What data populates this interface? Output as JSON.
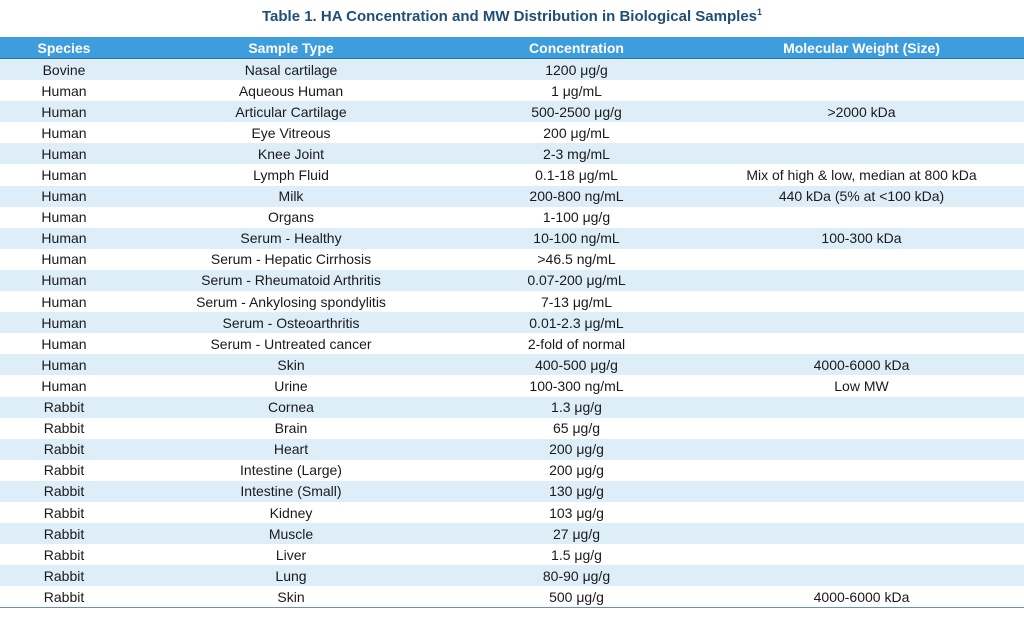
{
  "title": {
    "text": "Table 1. HA Concentration and MW Distribution in Biological Samples",
    "superscript": "1"
  },
  "table": {
    "headers": [
      "Species",
      "Sample Type",
      "Concentration",
      "Molecular Weight (Size)"
    ],
    "rows": [
      [
        "Bovine",
        "Nasal cartilage",
        "1200 μg/g",
        ""
      ],
      [
        "Human",
        "Aqueous Human",
        "1 μg/mL",
        ""
      ],
      [
        "Human",
        "Articular Cartilage",
        "500-2500 μg/g",
        ">2000 kDa"
      ],
      [
        "Human",
        "Eye Vitreous",
        "200 μg/mL",
        ""
      ],
      [
        "Human",
        "Knee Joint",
        "2-3 mg/mL",
        ""
      ],
      [
        "Human",
        "Lymph Fluid",
        "0.1-18 μg/mL",
        "Mix of high & low, median at 800 kDa"
      ],
      [
        "Human",
        "Milk",
        "200-800 ng/mL",
        "440 kDa (5% at <100 kDa)"
      ],
      [
        "Human",
        "Organs",
        "1-100 μg/g",
        ""
      ],
      [
        "Human",
        "Serum - Healthy",
        "10-100 ng/mL",
        "100-300 kDa"
      ],
      [
        "Human",
        "Serum - Hepatic Cirrhosis",
        ">46.5 ng/mL",
        ""
      ],
      [
        "Human",
        "Serum - Rheumatoid Arthritis",
        "0.07-200 μg/mL",
        ""
      ],
      [
        "Human",
        "Serum - Ankylosing spondylitis",
        "7-13 μg/mL",
        ""
      ],
      [
        "Human",
        "Serum - Osteoarthritis",
        "0.01-2.3 μg/mL",
        ""
      ],
      [
        "Human",
        "Serum - Untreated cancer",
        "2-fold of normal",
        ""
      ],
      [
        "Human",
        "Skin",
        "400-500 μg/g",
        "4000-6000 kDa"
      ],
      [
        "Human",
        "Urine",
        "100-300 ng/mL",
        "Low MW"
      ],
      [
        "Rabbit",
        "Cornea",
        "1.3 μg/g",
        ""
      ],
      [
        "Rabbit",
        "Brain",
        "65 μg/g",
        ""
      ],
      [
        "Rabbit",
        "Heart",
        "200 μg/g",
        ""
      ],
      [
        "Rabbit",
        "Intestine (Large)",
        "200 μg/g",
        ""
      ],
      [
        "Rabbit",
        "Intestine (Small)",
        "130 μg/g",
        ""
      ],
      [
        "Rabbit",
        "Kidney",
        "103 μg/g",
        ""
      ],
      [
        "Rabbit",
        "Muscle",
        "27 μg/g",
        ""
      ],
      [
        "Rabbit",
        "Liver",
        "1.5 μg/g",
        ""
      ],
      [
        "Rabbit",
        "Lung",
        "80-90 μg/g",
        ""
      ],
      [
        "Rabbit",
        "Skin",
        "500 μg/g",
        "4000-6000 kDa"
      ]
    ]
  },
  "colors": {
    "title": "#1f4e79",
    "header_bg": "#3e9ddd",
    "stripe_bg": "#ddeef9"
  }
}
